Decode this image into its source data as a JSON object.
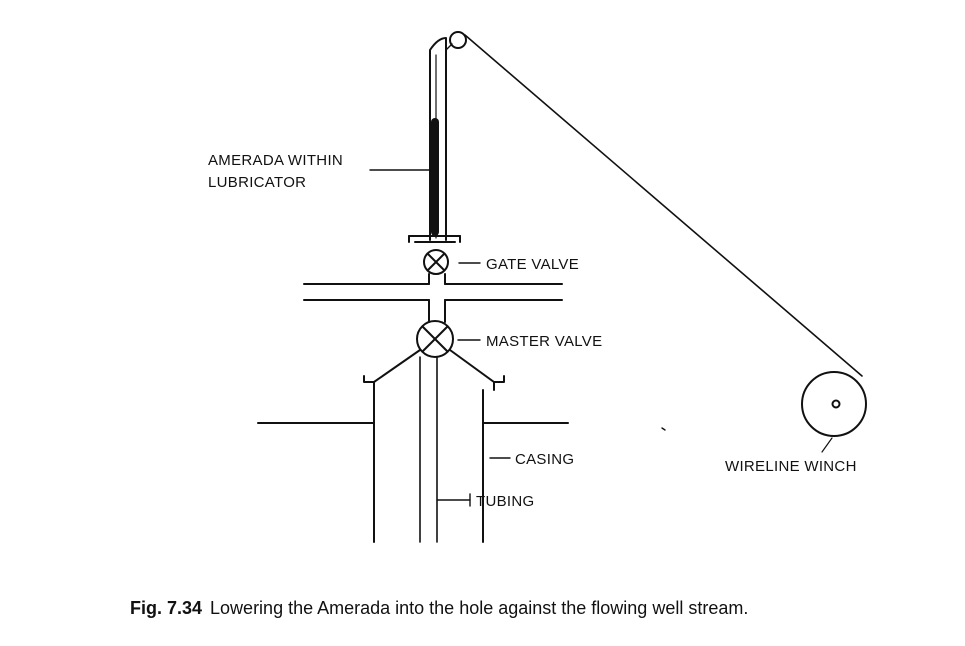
{
  "labels": {
    "amerada_line1": "AMERADA WITHIN",
    "amerada_line2": "LUBRICATOR",
    "gate_valve": "GATE VALVE",
    "master_valve": "MASTER VALVE",
    "casing": "CASING",
    "tubing": "TUBING",
    "wireline_winch": "WIRELINE WINCH"
  },
  "caption": {
    "number": "Fig. 7.34",
    "text": "Lowering the Amerada into the hole against the flowing well stream."
  },
  "colors": {
    "ink": "#111111",
    "background": "#ffffff"
  }
}
